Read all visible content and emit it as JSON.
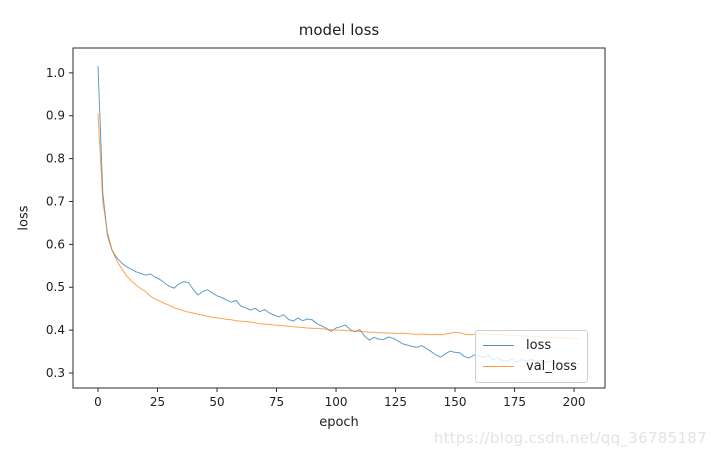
{
  "watermark": {
    "text": "https://blog.csdn.net/qq_36785187",
    "color": "#e3e3e3"
  },
  "chart_data": {
    "type": "line",
    "title": "model loss",
    "xlabel": "epoch",
    "ylabel": "loss",
    "xlim": [
      -10.5,
      213
    ],
    "ylim": [
      0.265,
      1.058
    ],
    "x_ticks": [
      0,
      25,
      50,
      75,
      100,
      125,
      150,
      175,
      200
    ],
    "y_ticks": [
      0.3,
      0.4,
      0.5,
      0.6,
      0.7,
      0.8,
      0.9,
      1.0
    ],
    "grid": false,
    "legend": {
      "position": "lower right",
      "entries": [
        "loss",
        "val_loss"
      ]
    },
    "axis_color": "#2b2b2b",
    "series": [
      {
        "name": "loss",
        "color": "#1f77b4",
        "x": [
          0,
          2,
          4,
          6,
          8,
          10,
          12,
          14,
          16,
          18,
          20,
          22,
          24,
          26,
          28,
          30,
          32,
          34,
          36,
          38,
          40,
          42,
          44,
          46,
          48,
          50,
          52,
          54,
          56,
          58,
          60,
          62,
          64,
          66,
          68,
          70,
          72,
          74,
          76,
          78,
          80,
          82,
          84,
          86,
          88,
          90,
          92,
          94,
          96,
          98,
          100,
          102,
          104,
          106,
          108,
          110,
          112,
          114,
          116,
          118,
          120,
          122,
          124,
          126,
          128,
          130,
          132,
          134,
          136,
          138,
          140,
          142,
          144,
          146,
          148,
          150,
          152,
          154,
          156,
          158,
          160,
          162,
          164,
          166,
          168,
          170,
          172,
          174,
          176,
          178,
          180,
          182,
          184,
          186,
          188,
          190,
          192,
          194,
          196,
          198,
          200,
          202
        ],
        "y": [
          1.015,
          0.72,
          0.62,
          0.585,
          0.568,
          0.556,
          0.548,
          0.542,
          0.536,
          0.532,
          0.528,
          0.531,
          0.524,
          0.518,
          0.51,
          0.502,
          0.498,
          0.508,
          0.513,
          0.511,
          0.495,
          0.482,
          0.49,
          0.494,
          0.487,
          0.48,
          0.476,
          0.47,
          0.465,
          0.469,
          0.456,
          0.452,
          0.447,
          0.451,
          0.443,
          0.448,
          0.44,
          0.435,
          0.431,
          0.436,
          0.425,
          0.421,
          0.428,
          0.422,
          0.426,
          0.424,
          0.415,
          0.41,
          0.404,
          0.397,
          0.405,
          0.408,
          0.412,
          0.401,
          0.396,
          0.401,
          0.386,
          0.377,
          0.383,
          0.379,
          0.378,
          0.384,
          0.381,
          0.375,
          0.368,
          0.365,
          0.362,
          0.36,
          0.364,
          0.357,
          0.35,
          0.342,
          0.337,
          0.345,
          0.351,
          0.348,
          0.347,
          0.338,
          0.335,
          0.342,
          0.34,
          0.336,
          0.342,
          0.33,
          0.335,
          0.329,
          0.328,
          0.333,
          0.325,
          0.331,
          0.328,
          0.332,
          0.326,
          0.33,
          0.324,
          0.328,
          0.322,
          0.326,
          0.32,
          0.325,
          0.318,
          0.322
        ]
      },
      {
        "name": "val_loss",
        "color": "#ff7f0e",
        "x": [
          0,
          2,
          4,
          6,
          8,
          10,
          12,
          14,
          16,
          18,
          20,
          22,
          24,
          26,
          28,
          30,
          32,
          34,
          36,
          38,
          40,
          42,
          44,
          46,
          48,
          50,
          52,
          54,
          56,
          58,
          60,
          62,
          64,
          66,
          68,
          70,
          72,
          74,
          76,
          78,
          80,
          82,
          84,
          86,
          88,
          90,
          92,
          94,
          96,
          98,
          100,
          102,
          104,
          106,
          108,
          110,
          112,
          114,
          116,
          118,
          120,
          122,
          124,
          126,
          128,
          130,
          132,
          134,
          136,
          138,
          140,
          142,
          144,
          146,
          148,
          150,
          152,
          154,
          156,
          158,
          160,
          162,
          164,
          166,
          168,
          170,
          172,
          174,
          176,
          178,
          180,
          182,
          184,
          186,
          188,
          190,
          192,
          194,
          196,
          198,
          200,
          202
        ],
        "y": [
          0.905,
          0.7,
          0.627,
          0.585,
          0.561,
          0.543,
          0.527,
          0.515,
          0.505,
          0.497,
          0.49,
          0.479,
          0.472,
          0.468,
          0.462,
          0.458,
          0.452,
          0.449,
          0.445,
          0.442,
          0.44,
          0.437,
          0.435,
          0.432,
          0.43,
          0.429,
          0.427,
          0.425,
          0.424,
          0.422,
          0.421,
          0.42,
          0.419,
          0.417,
          0.415,
          0.414,
          0.413,
          0.412,
          0.411,
          0.41,
          0.409,
          0.408,
          0.407,
          0.406,
          0.405,
          0.404,
          0.404,
          0.403,
          0.402,
          0.401,
          0.4,
          0.4,
          0.399,
          0.398,
          0.398,
          0.397,
          0.396,
          0.395,
          0.395,
          0.394,
          0.394,
          0.393,
          0.393,
          0.392,
          0.393,
          0.392,
          0.391,
          0.39,
          0.391,
          0.39,
          0.389,
          0.39,
          0.389,
          0.391,
          0.393,
          0.395,
          0.394,
          0.391,
          0.389,
          0.39,
          0.392,
          0.391,
          0.39,
          0.389,
          0.39,
          0.389,
          0.388,
          0.388,
          0.387,
          0.387,
          0.386,
          0.385,
          0.385,
          0.384,
          0.384,
          0.383,
          0.383,
          0.382,
          0.382,
          0.381,
          0.381,
          0.38
        ]
      }
    ]
  }
}
